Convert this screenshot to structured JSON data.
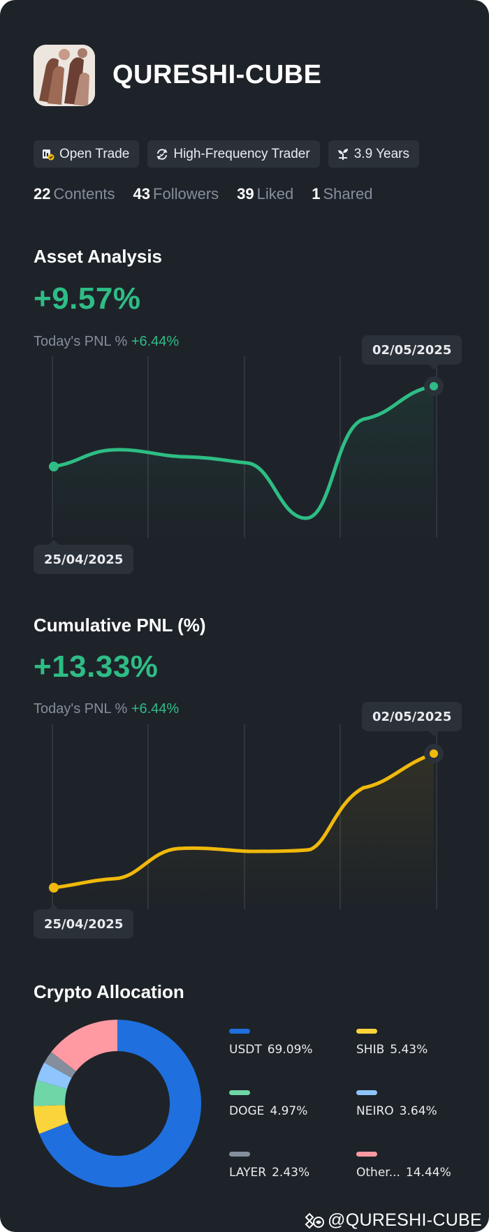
{
  "profile": {
    "name": "QURESHI-CUBE"
  },
  "tags": [
    {
      "icon": "open-trade-icon",
      "label": "Open Trade"
    },
    {
      "icon": "refresh-cycle-icon",
      "label": "High-Frequency Trader"
    },
    {
      "icon": "sprout-icon",
      "label": "3.9 Years"
    }
  ],
  "stats": [
    {
      "value": "22",
      "label": "Contents"
    },
    {
      "value": "43",
      "label": "Followers"
    },
    {
      "value": "39",
      "label": "Liked"
    },
    {
      "value": "1",
      "label": "Shared"
    }
  ],
  "asset": {
    "title": "Asset Analysis",
    "value": "+9.57%",
    "today_label": "Today's PNL %",
    "today_value": "+6.44%",
    "start_date": "25/04/2025",
    "end_date": "02/05/2025",
    "color": "#2ebd85"
  },
  "cumulative": {
    "title": "Cumulative PNL (%)",
    "value": "+13.33%",
    "today_label": "Today's PNL %",
    "today_value": "+6.44%",
    "start_date": "25/04/2025",
    "end_date": "02/05/2025",
    "color": "#f0b90b"
  },
  "allocation": {
    "title": "Crypto Allocation",
    "items": [
      {
        "name": "USDT",
        "percent": "69.09%",
        "value": 69.09,
        "color": "#1f6fde"
      },
      {
        "name": "SHIB",
        "percent": "5.43%",
        "value": 5.43,
        "color": "#f9d43a"
      },
      {
        "name": "DOGE",
        "percent": "4.97%",
        "value": 4.97,
        "color": "#6fd6a8"
      },
      {
        "name": "NEIRO",
        "percent": "3.64%",
        "value": 3.64,
        "color": "#8ec5ff"
      },
      {
        "name": "LAYER",
        "percent": "2.43%",
        "value": 2.43,
        "color": "#848e9c"
      },
      {
        "name": "Other...",
        "percent": "14.44%",
        "value": 14.44,
        "color": "#ff9aa2"
      }
    ]
  },
  "watermark": "@QURESHI-CUBE"
}
